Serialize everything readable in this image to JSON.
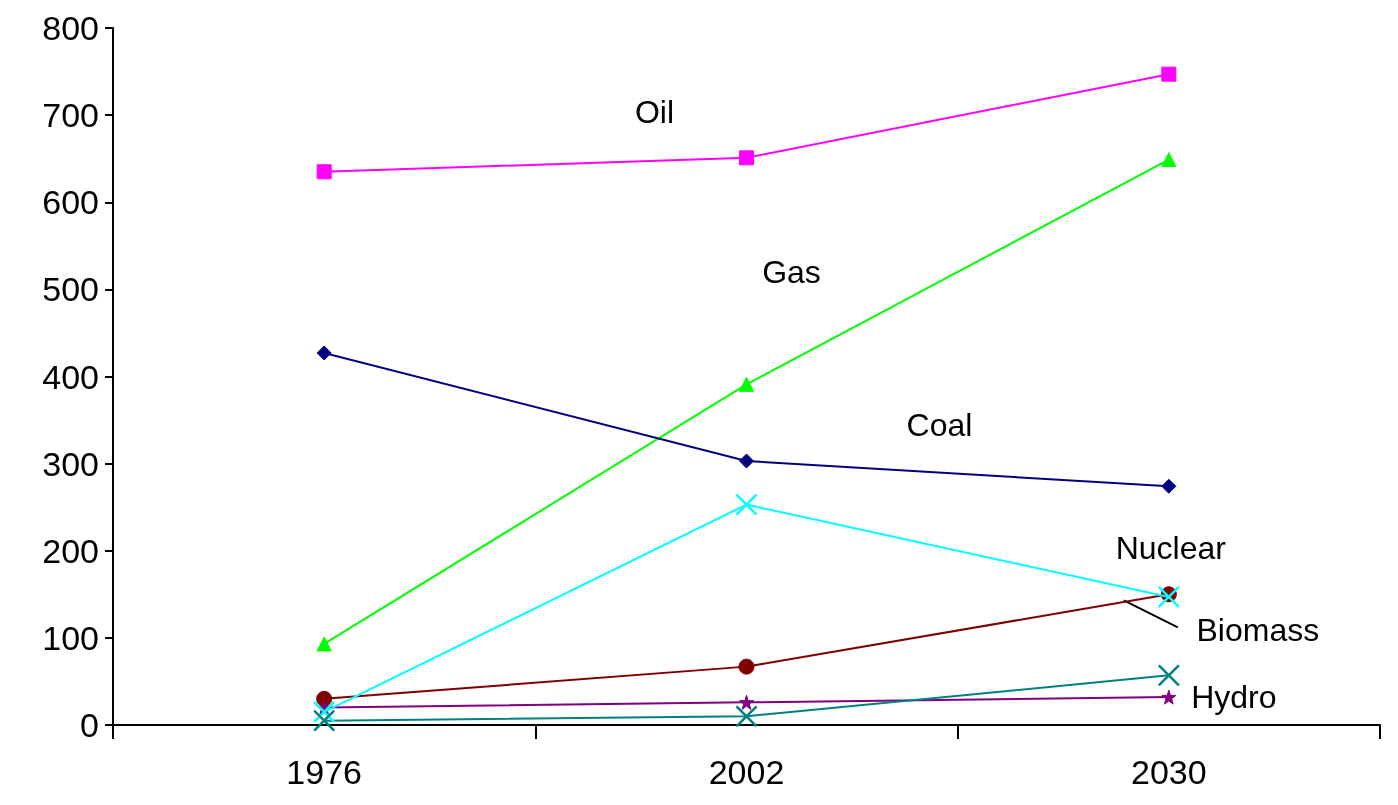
{
  "chart_data": {
    "type": "line",
    "categories": [
      "1976",
      "2002",
      "2030"
    ],
    "ylim": [
      0,
      800
    ],
    "yticks": [
      0,
      100,
      200,
      300,
      400,
      500,
      600,
      700,
      800
    ],
    "grid": false,
    "legend": false,
    "line_style": "solid",
    "series": [
      {
        "name": "Oil",
        "color": "#ff00ff",
        "marker": "square",
        "values": [
          635,
          651,
          747
        ]
      },
      {
        "name": "Gas",
        "color": "#00ff00",
        "marker": "triangle",
        "values": [
          93,
          391,
          649
        ]
      },
      {
        "name": "Coal",
        "color": "#000080",
        "marker": "diamond",
        "values": [
          427,
          303,
          274
        ]
      },
      {
        "name": "Nuclear",
        "color": "#00ffff",
        "marker": "cross",
        "values": [
          15,
          253,
          147
        ]
      },
      {
        "name": "Biomass",
        "color": "#800000",
        "marker": "circle",
        "values": [
          30,
          67,
          150
        ]
      },
      {
        "name": "Hydro",
        "color": "#800080",
        "marker": "star",
        "values": [
          20,
          26,
          32
        ]
      },
      {
        "color": "#008080",
        "marker": "cross",
        "values": [
          5,
          10,
          57
        ]
      }
    ]
  }
}
